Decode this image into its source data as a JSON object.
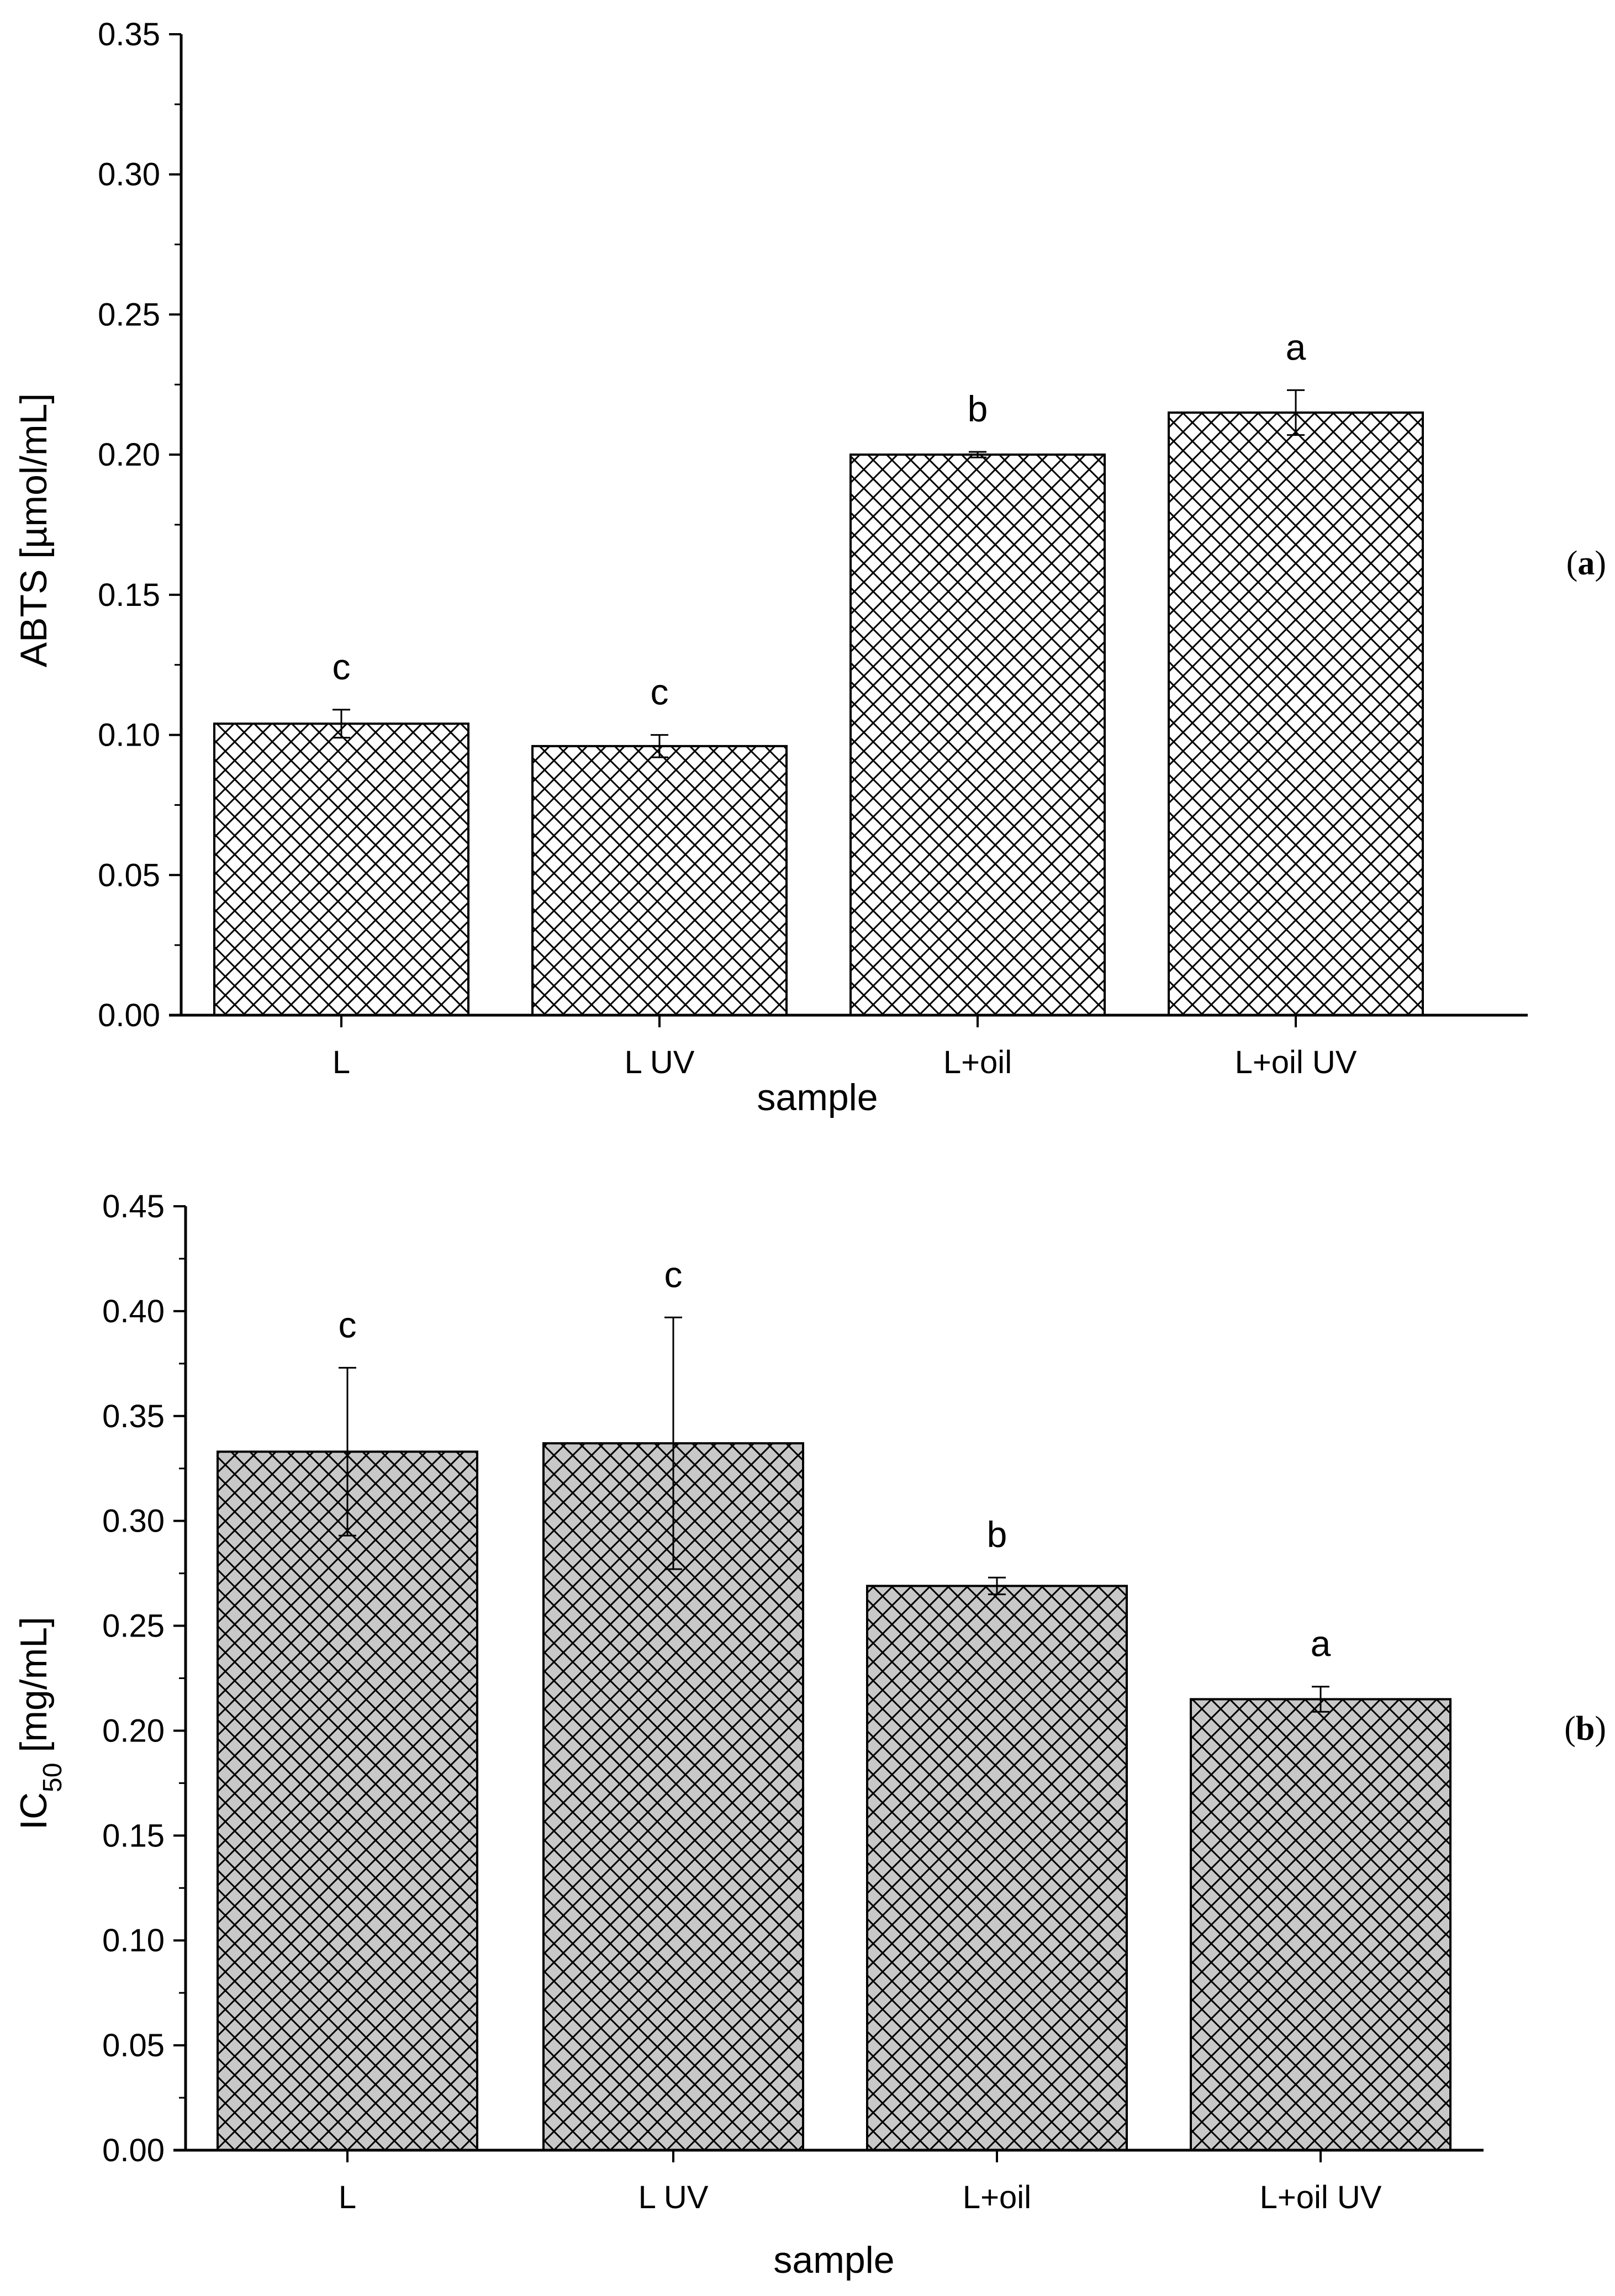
{
  "chart_data": [
    {
      "type": "bar",
      "panel": "(a)",
      "panel_letter": "a",
      "ylabel": "ABTS [µmol/mL]",
      "xlabel": "sample",
      "categories": [
        "L",
        "L UV",
        "L+oil",
        "L+oil UV"
      ],
      "values": [
        0.104,
        0.096,
        0.2,
        0.215
      ],
      "errors": [
        0.005,
        0.004,
        0.001,
        0.008
      ],
      "significance": [
        "c",
        "c",
        "b",
        "a"
      ],
      "ylim": [
        0,
        0.35
      ],
      "yticks": [
        "0.00",
        "0.05",
        "0.10",
        "0.15",
        "0.20",
        "0.25",
        "0.30",
        "0.35"
      ],
      "bar_fill": "#ffffff",
      "hatch_color": "#000000",
      "grid": false
    },
    {
      "type": "bar",
      "panel": "(b)",
      "panel_letter": "b",
      "ylabel_main": "IC",
      "ylabel_sub": "50",
      "ylabel_rest": " [mg/mL]",
      "xlabel": "sample",
      "categories": [
        "L",
        "L UV",
        "L+oil",
        "L+oil UV"
      ],
      "values": [
        0.333,
        0.337,
        0.269,
        0.215
      ],
      "errors": [
        0.04,
        0.06,
        0.004,
        0.006
      ],
      "significance": [
        "c",
        "c",
        "b",
        "a"
      ],
      "ylim": [
        0,
        0.45
      ],
      "yticks": [
        "0.00",
        "0.05",
        "0.10",
        "0.15",
        "0.20",
        "0.25",
        "0.30",
        "0.35",
        "0.40",
        "0.45"
      ],
      "bar_fill": "#c8c8c8",
      "hatch_color": "#000000",
      "grid": false
    }
  ]
}
